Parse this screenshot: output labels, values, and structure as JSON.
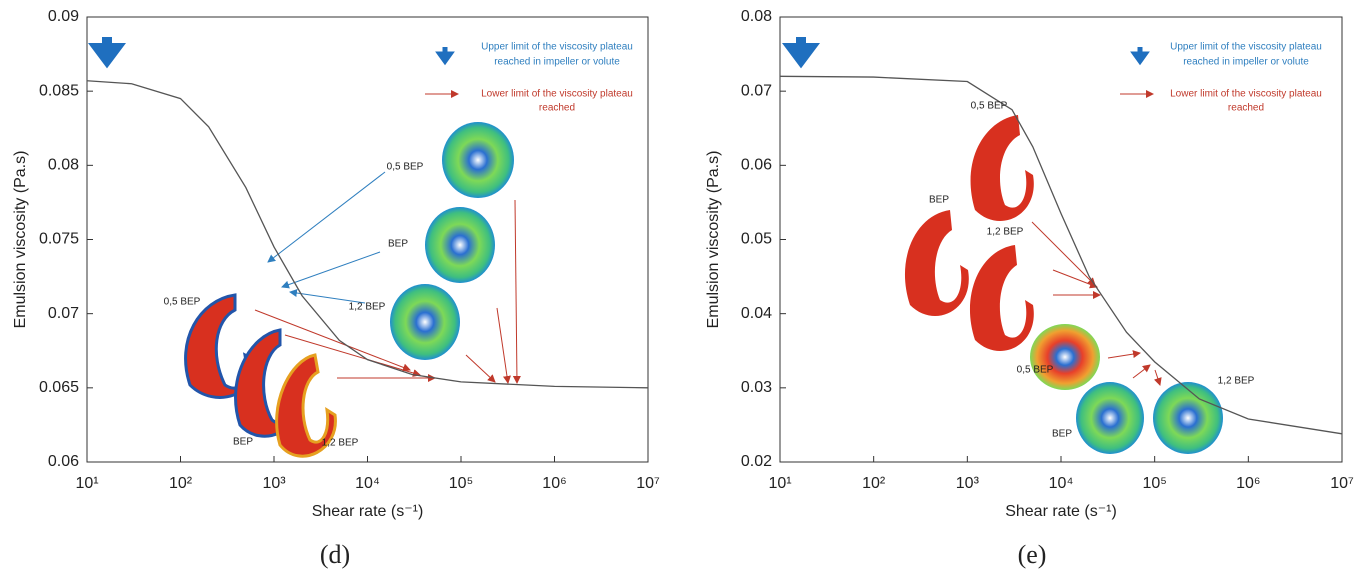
{
  "chart_data": [
    {
      "type": "line",
      "log_x": true,
      "grid": false,
      "panel_label": "(d)",
      "x_label": "Shear rate (s⁻¹)",
      "y_label": "Emulsion viscosity (Pa.s)",
      "xlim": [
        10,
        10000000
      ],
      "xticks": [
        {
          "value": 10,
          "label": "10¹"
        },
        {
          "value": 100,
          "label": "10²"
        },
        {
          "value": 1000,
          "label": "10³"
        },
        {
          "value": 10000,
          "label": "10⁴"
        },
        {
          "value": 100000,
          "label": "10⁵"
        },
        {
          "value": 1000000,
          "label": "10⁶"
        },
        {
          "value": 10000000,
          "label": "10⁷"
        }
      ],
      "ylim": [
        0.06,
        0.09
      ],
      "yticks": [
        0.06,
        0.065,
        0.07,
        0.075,
        0.08,
        0.085,
        0.09
      ],
      "series": [
        {
          "color": "#555555",
          "x": [
            10,
            30,
            100,
            200,
            500,
            1000,
            2000,
            5000,
            10000,
            30000,
            100000,
            1000000,
            10000000
          ],
          "values": [
            0.0857,
            0.0855,
            0.0845,
            0.0826,
            0.0785,
            0.0745,
            0.0712,
            0.0682,
            0.0669,
            0.0659,
            0.0654,
            0.0651,
            0.065
          ]
        }
      ],
      "annotations": [
        "0,5 BEP",
        "BEP",
        "1,2 BEP",
        "0,5 BEP",
        "BEP",
        "1,2 BEP"
      ],
      "notes": [
        "Upper limit of the viscosity plateau",
        "reached in impeller or volute",
        "Lower limit of the viscosity plateau",
        "reached"
      ]
    },
    {
      "type": "line",
      "log_x": true,
      "grid": false,
      "panel_label": "(e)",
      "x_label": "Shear rate (s⁻¹)",
      "y_label": "Emulsion viscosity (Pa.s)",
      "xlim": [
        10,
        10000000
      ],
      "xticks": [
        {
          "value": 10,
          "label": "10¹"
        },
        {
          "value": 100,
          "label": "10²"
        },
        {
          "value": 1000,
          "label": "10³"
        },
        {
          "value": 10000,
          "label": "10⁴"
        },
        {
          "value": 100000,
          "label": "10⁵"
        },
        {
          "value": 1000000,
          "label": "10⁶"
        },
        {
          "value": 10000000,
          "label": "10⁷"
        }
      ],
      "ylim": [
        0.02,
        0.08
      ],
      "yticks": [
        0.02,
        0.03,
        0.04,
        0.05,
        0.06,
        0.07,
        0.08
      ],
      "series": [
        {
          "color": "#555555",
          "x": [
            10,
            100,
            1000,
            3000,
            5000,
            10000,
            20000,
            50000,
            100000,
            300000,
            1000000,
            10000000
          ],
          "values": [
            0.072,
            0.0719,
            0.0713,
            0.0675,
            0.0625,
            0.0535,
            0.045,
            0.0375,
            0.0335,
            0.0285,
            0.0258,
            0.0238
          ]
        }
      ],
      "annotations": [
        "0,5 BEP",
        "BEP",
        "1,2 BEP",
        "0,5 BEP",
        "BEP",
        "1,2 BEP"
      ],
      "notes": [
        "Upper limit of the viscosity plateau",
        "reached in impeller or volute",
        "Lower limit of the viscosity plateau",
        "reached"
      ]
    }
  ]
}
